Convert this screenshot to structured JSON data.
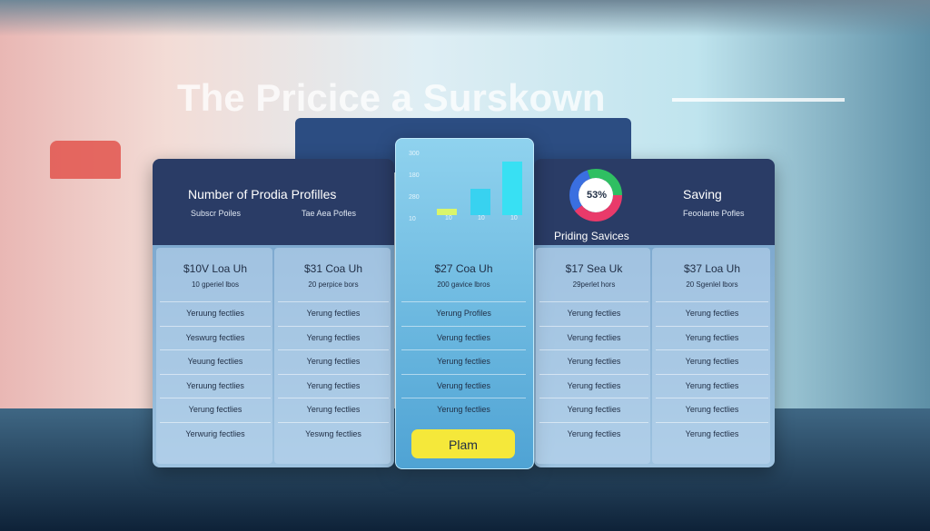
{
  "title": "The Pricice a Surskown",
  "left_panel": {
    "heading": "Number of Prodia Profilles",
    "sublabels": [
      "Subscr Poiles",
      "Tae Aea Pofles"
    ]
  },
  "center_chart": {
    "y_labels": [
      "300",
      "180",
      "280",
      "10"
    ],
    "x_labels": [
      "10",
      "10",
      "10"
    ]
  },
  "right_panel": {
    "donut_label": "53%",
    "caption": "Priding Savices",
    "heading": "Saving",
    "sublabel": "Feoolante Pofles"
  },
  "columns": [
    {
      "price": "$10V Loa Uh",
      "note": "10 gperiel lbos",
      "features": [
        "Yeruung fectlies",
        "Yeswurg fectlies",
        "Yeuung fectlies",
        "Yeruung fectlies",
        "Yerung fectlies",
        "Yerwurig fectlies"
      ]
    },
    {
      "price": "$31 Coa Uh",
      "note": "20 perpice bors",
      "features": [
        "Yerung fectlies",
        "Yerung fectlies",
        "Yerung fectlies",
        "Yerung fectlies",
        "Yerung fectlies",
        "Yeswng fectlies"
      ]
    },
    {
      "price": "$27 Coa Uh",
      "note": "200 gavice lbros",
      "features": [
        "Yerung Profiles",
        "Verung fectlies",
        "Yerung fectlies",
        "Verung fectlies",
        "Yerung fectlies"
      ]
    },
    {
      "price": "$17 Sea Uk",
      "note": "29perlet hors",
      "features": [
        "Yerung fectlies",
        "Verung fectlies",
        "Yerung fectlies",
        "Yerung fectlies",
        "Yerung fectlies",
        "Yerung fectlies"
      ]
    },
    {
      "price": "$37 Loa Uh",
      "note": "20 Sgenlel lbors",
      "features": [
        "Yerung fectlies",
        "Yerung fectlies",
        "Yerung fectlies",
        "Yerung fectlies",
        "Yerung fectlies",
        "Yerung fectlies"
      ]
    }
  ],
  "button": "Plam"
}
